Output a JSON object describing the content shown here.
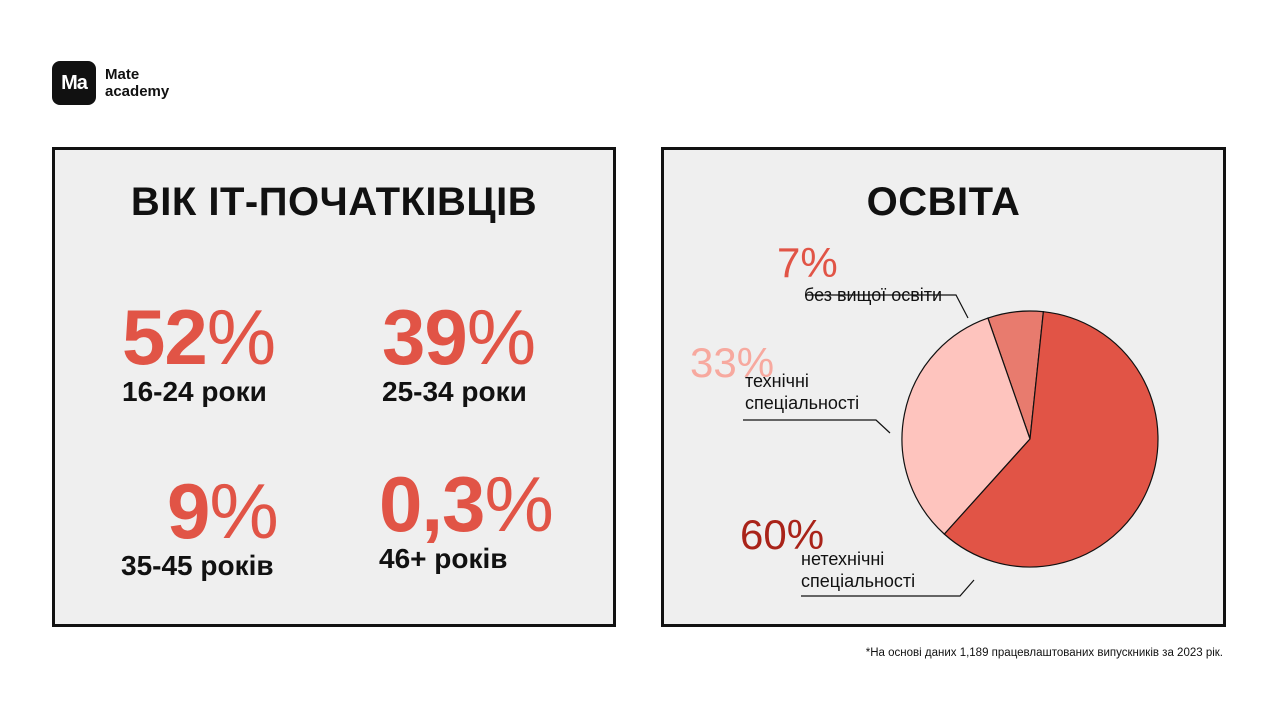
{
  "logo": {
    "mark": "Ma",
    "line1": "Mate",
    "line2": "academy"
  },
  "age_panel": {
    "title": "ВІК ІТ-ПОЧАТКІВЦІВ",
    "stats": [
      {
        "value": "52",
        "unit": "%",
        "label": "16-24 роки"
      },
      {
        "value": "39",
        "unit": "%",
        "label": "25-34 роки"
      },
      {
        "value": "9",
        "unit": "%",
        "label": "35-45 років"
      },
      {
        "value": "0,3",
        "unit": "%",
        "label": "46+ років"
      }
    ]
  },
  "edu_panel": {
    "title": "ОСВІТА",
    "callouts": [
      {
        "pct": "7%",
        "line1": "без вищої освіти",
        "line2": ""
      },
      {
        "pct": "33%",
        "line1": "технічні",
        "line2": "спеціальності"
      },
      {
        "pct": "60%",
        "line1": "нетехнічні",
        "line2": "спеціальності"
      }
    ]
  },
  "chart_data": {
    "type": "pie",
    "categories": [
      "без вищої освіти",
      "технічні спеціальності",
      "нетехнічні спеціальності"
    ],
    "values": [
      7,
      33,
      60
    ],
    "title": "ОСВІТА",
    "colors": [
      "#e87b6e",
      "#fec4be",
      "#e15446"
    ],
    "label_colors": [
      "#e15446",
      "#f7a99f",
      "#a92319"
    ]
  },
  "footnote": "*На основі даних 1,189 працевлаштованих випускників за 2023 рік."
}
